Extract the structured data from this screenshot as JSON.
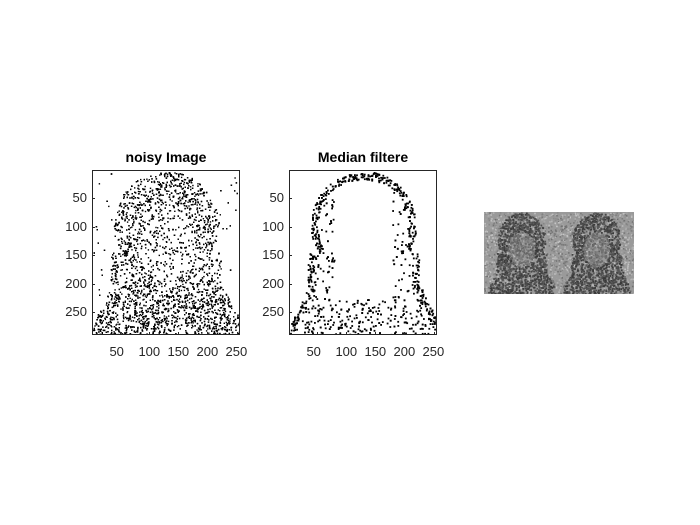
{
  "figure": {
    "background": "#ffffff",
    "axes_color": "#262626"
  },
  "panels": [
    {
      "id": "noisy",
      "title": "noisy Image",
      "xticks": [
        "50",
        "100",
        "150",
        "200",
        "250"
      ],
      "yticks": [
        "50",
        "100",
        "150",
        "200",
        "250"
      ],
      "xlim": [
        1,
        256
      ],
      "ylim": [
        1,
        290
      ],
      "xtick_values": [
        50,
        100,
        150,
        200,
        250
      ],
      "ytick_values": [
        50,
        100,
        150,
        200,
        250
      ],
      "content": "binary dot scatter of a face and long hair, dense black specks (salt-and-pepper noise)"
    },
    {
      "id": "median",
      "title": "Median filtere",
      "xticks": [
        "50",
        "100",
        "150",
        "200",
        "250"
      ],
      "yticks": [
        "50",
        "100",
        "150",
        "200",
        "250"
      ],
      "xlim": [
        1,
        256
      ],
      "ylim": [
        1,
        290
      ],
      "xtick_values": [
        50,
        100,
        150,
        200,
        250
      ],
      "ytick_values": [
        50,
        100,
        150,
        200,
        250
      ],
      "content": "binary image after median filtering, sparse black specks outlining hair edges"
    }
  ],
  "montage": {
    "content": "two grayscale noisy portraits side by side (noisy and filtered), no axes",
    "tone": "#8c8c8c"
  }
}
